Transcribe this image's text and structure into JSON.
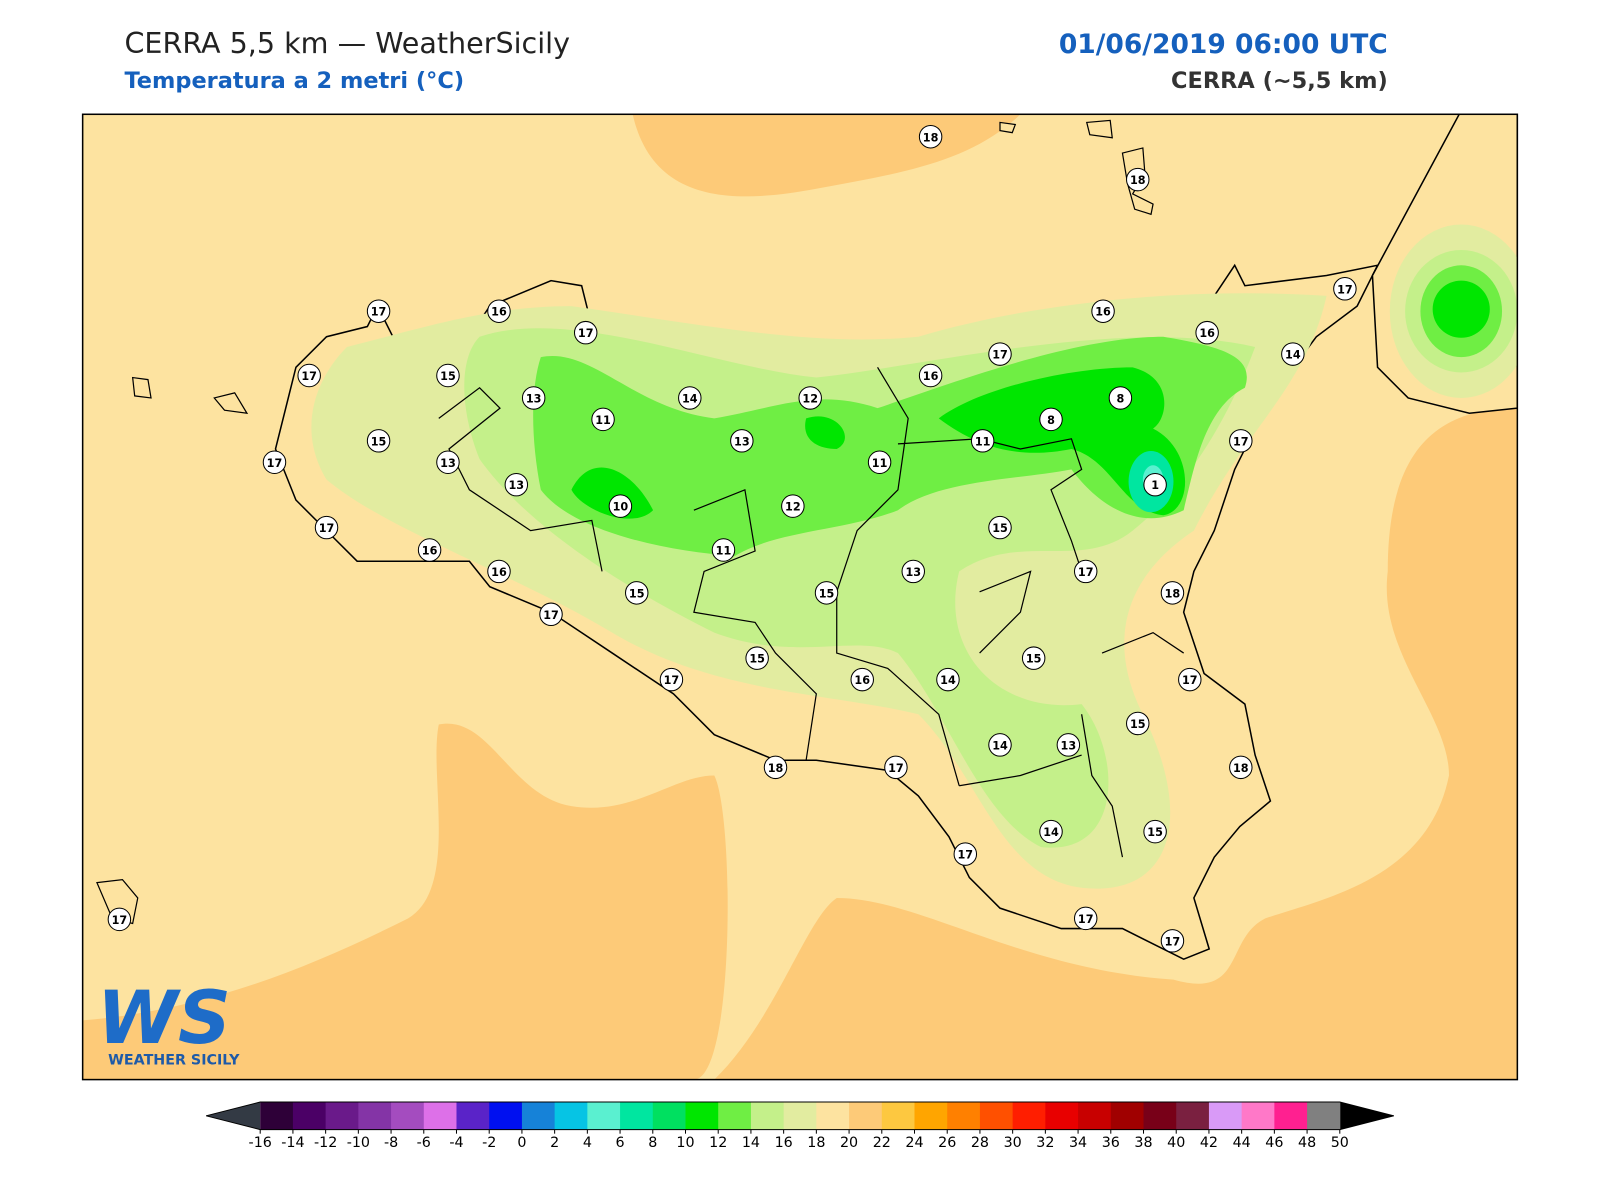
{
  "header": {
    "title": "CERRA 5,5 km — WeatherSicily",
    "subtitle": "Temperatura a 2 metri (°C)",
    "datetime": "01/06/2019 06:00 UTC",
    "model": "CERRA (~5,5 km)"
  },
  "stations": [
    18,
    18,
    17,
    16,
    17,
    17,
    15,
    13,
    11,
    14,
    12,
    13,
    15,
    17,
    13,
    13,
    10,
    12,
    11,
    11,
    17,
    16,
    16,
    15,
    17,
    15,
    15,
    17,
    16,
    18,
    17,
    16,
    17,
    16,
    16,
    14,
    17,
    11,
    8,
    8,
    1,
    17,
    15,
    13,
    17,
    18,
    15,
    14,
    17,
    14,
    13,
    15,
    18,
    17,
    14,
    15,
    17,
    17,
    17
  ],
  "logo": {
    "mark": "WS",
    "text": "WEATHER SICILY"
  },
  "colorbar": {
    "lim": [
      -16,
      50
    ],
    "ticks": [
      -16,
      -14,
      -12,
      -10,
      -8,
      -6,
      -4,
      -2,
      0,
      2,
      4,
      6,
      8,
      10,
      12,
      14,
      16,
      18,
      20,
      22,
      24,
      26,
      28,
      30,
      32,
      34,
      36,
      38,
      40,
      42,
      44,
      46,
      48,
      50
    ],
    "colors": [
      "#2e0038",
      "#4b0066",
      "#6a1a8a",
      "#8434a6",
      "#a44cbf",
      "#dd70e8",
      "#5a23c8",
      "#0010f0",
      "#1682d8",
      "#06c4e4",
      "#5af0d0",
      "#00e6a0",
      "#00e060",
      "#00e600",
      "#6fee44",
      "#c4f08a",
      "#e2eca0",
      "#fde3a0",
      "#fdca78",
      "#fdc840",
      "#ffa500",
      "#ff8000",
      "#ff5000",
      "#ff1e00",
      "#e80000",
      "#c80000",
      "#a00000",
      "#780018",
      "#7a2040",
      "#d99af7",
      "#ff78c8",
      "#ff2090",
      "#808080",
      "#3a3a3a"
    ],
    "under": "#333a44",
    "over": "#000000"
  }
}
